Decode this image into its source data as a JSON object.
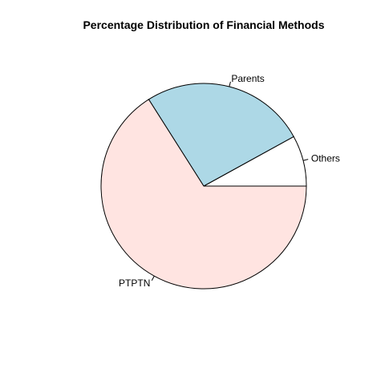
{
  "chart_data": {
    "type": "pie",
    "title": "Percentage Distribution of Financial Methods",
    "start_angle_deg": 0,
    "direction": "counterclockwise",
    "slices": [
      {
        "label": "Others",
        "value": 8,
        "color": "#FFFFFF"
      },
      {
        "label": "Parents",
        "value": 26,
        "color": "#ADD8E6"
      },
      {
        "label": "PTPTN",
        "value": 66,
        "color": "#FFE4E1"
      }
    ]
  }
}
